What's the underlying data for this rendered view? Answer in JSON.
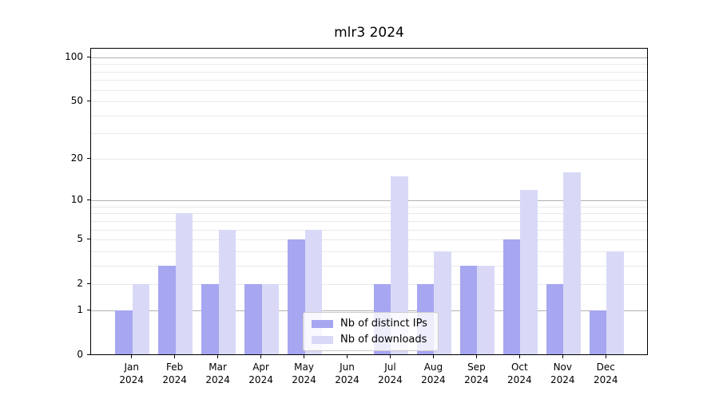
{
  "title": "mlr3 2024",
  "chart_data": {
    "type": "bar",
    "title": "mlr3 2024",
    "xlabel": "",
    "ylabel": "",
    "yscale": "log1p",
    "ylim": [
      0,
      100
    ],
    "grid": true,
    "yticks": [
      0,
      1,
      2,
      5,
      10,
      20,
      50,
      100
    ],
    "major_gridlines": [
      1,
      10,
      100
    ],
    "minor_gridlines": [
      2,
      3,
      4,
      5,
      6,
      7,
      8,
      9,
      20,
      30,
      40,
      50,
      60,
      70,
      80,
      90
    ],
    "months": [
      "Jan",
      "Feb",
      "Mar",
      "Apr",
      "May",
      "Jun",
      "Jul",
      "Aug",
      "Sep",
      "Oct",
      "Nov",
      "Dec"
    ],
    "year": "2024",
    "categories": [
      "Jan 2024",
      "Feb 2024",
      "Mar 2024",
      "Apr 2024",
      "May 2024",
      "Jun 2024",
      "Jul 2024",
      "Aug 2024",
      "Sep 2024",
      "Oct 2024",
      "Nov 2024",
      "Dec 2024"
    ],
    "series": [
      {
        "name": "Nb of distinct IPs",
        "color": "#a6a6f1",
        "values": [
          1,
          3,
          2,
          2,
          5,
          0,
          2,
          2,
          3,
          5,
          2,
          1
        ]
      },
      {
        "name": "Nb of downloads",
        "color": "#d9d9f7",
        "values": [
          2,
          8,
          6,
          2,
          6,
          0,
          15,
          4,
          3,
          12,
          16,
          4
        ]
      }
    ],
    "legend_position": "lower center",
    "colors": {
      "major_grid": "#b0b0b0",
      "minor_grid": "#e9e9e9",
      "frame": "#000000",
      "text": "#000000"
    }
  }
}
